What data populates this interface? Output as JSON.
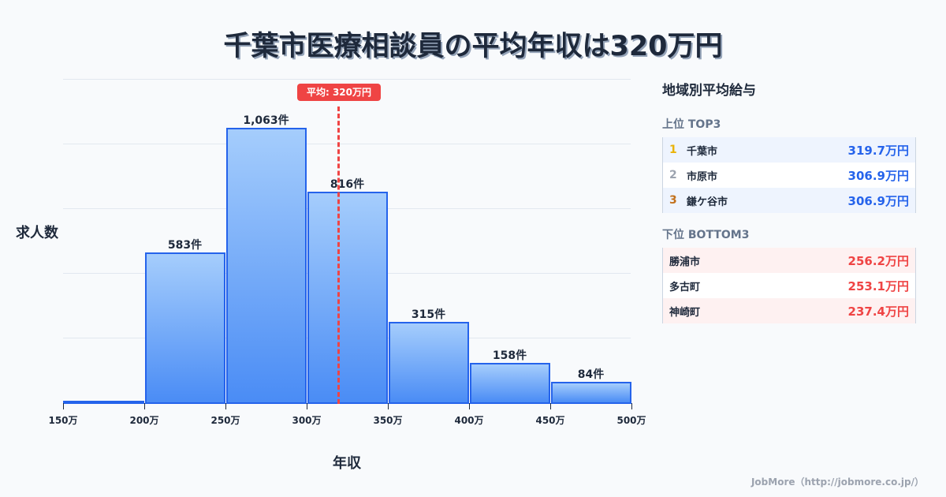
{
  "title": "千葉市医療相談員の平均年収は320万円",
  "chart_data": {
    "type": "bar",
    "title": "千葉市医療相談員の平均年収は320万円",
    "xlabel": "年収",
    "ylabel": "求人数",
    "x_ticks": [
      "150万",
      "200万",
      "250万",
      "300万",
      "350万",
      "400万",
      "450万",
      "500万"
    ],
    "categories": [
      "150-200万",
      "200-250万",
      "250-300万",
      "300-350万",
      "350-400万",
      "400-450万",
      "450-500万"
    ],
    "values": [
      5,
      583,
      1063,
      816,
      315,
      158,
      84
    ],
    "value_labels": [
      "",
      "583件",
      "1,063件",
      "816件",
      "315件",
      "158件",
      "84件"
    ],
    "ylim": [
      0,
      1250
    ],
    "grid": true,
    "annotation": {
      "label": "平均: 320万円",
      "x": 320,
      "color": "#ef4444",
      "style": "dashed"
    },
    "bar_color": "#2563eb"
  },
  "axis": {
    "y_label": "求人数",
    "x_label": "年収"
  },
  "avg_badge": "平均: 320万円",
  "panel": {
    "title": "地域別平均給与",
    "top_title": "上位 TOP3",
    "top": [
      {
        "rank": "1",
        "name": "千葉市",
        "value": "319.7万円",
        "rank_color": "#eab308"
      },
      {
        "rank": "2",
        "name": "市原市",
        "value": "306.9万円",
        "rank_color": "#9ca3af"
      },
      {
        "rank": "3",
        "name": "鎌ケ谷市",
        "value": "306.9万円",
        "rank_color": "#c2711c"
      }
    ],
    "bottom_title": "下位 BOTTOM3",
    "bottom": [
      {
        "name": "勝浦市",
        "value": "256.2万円"
      },
      {
        "name": "多古町",
        "value": "253.1万円"
      },
      {
        "name": "神崎町",
        "value": "237.4万円"
      }
    ]
  },
  "source": "JobMore（http://jobmore.co.jp/）"
}
